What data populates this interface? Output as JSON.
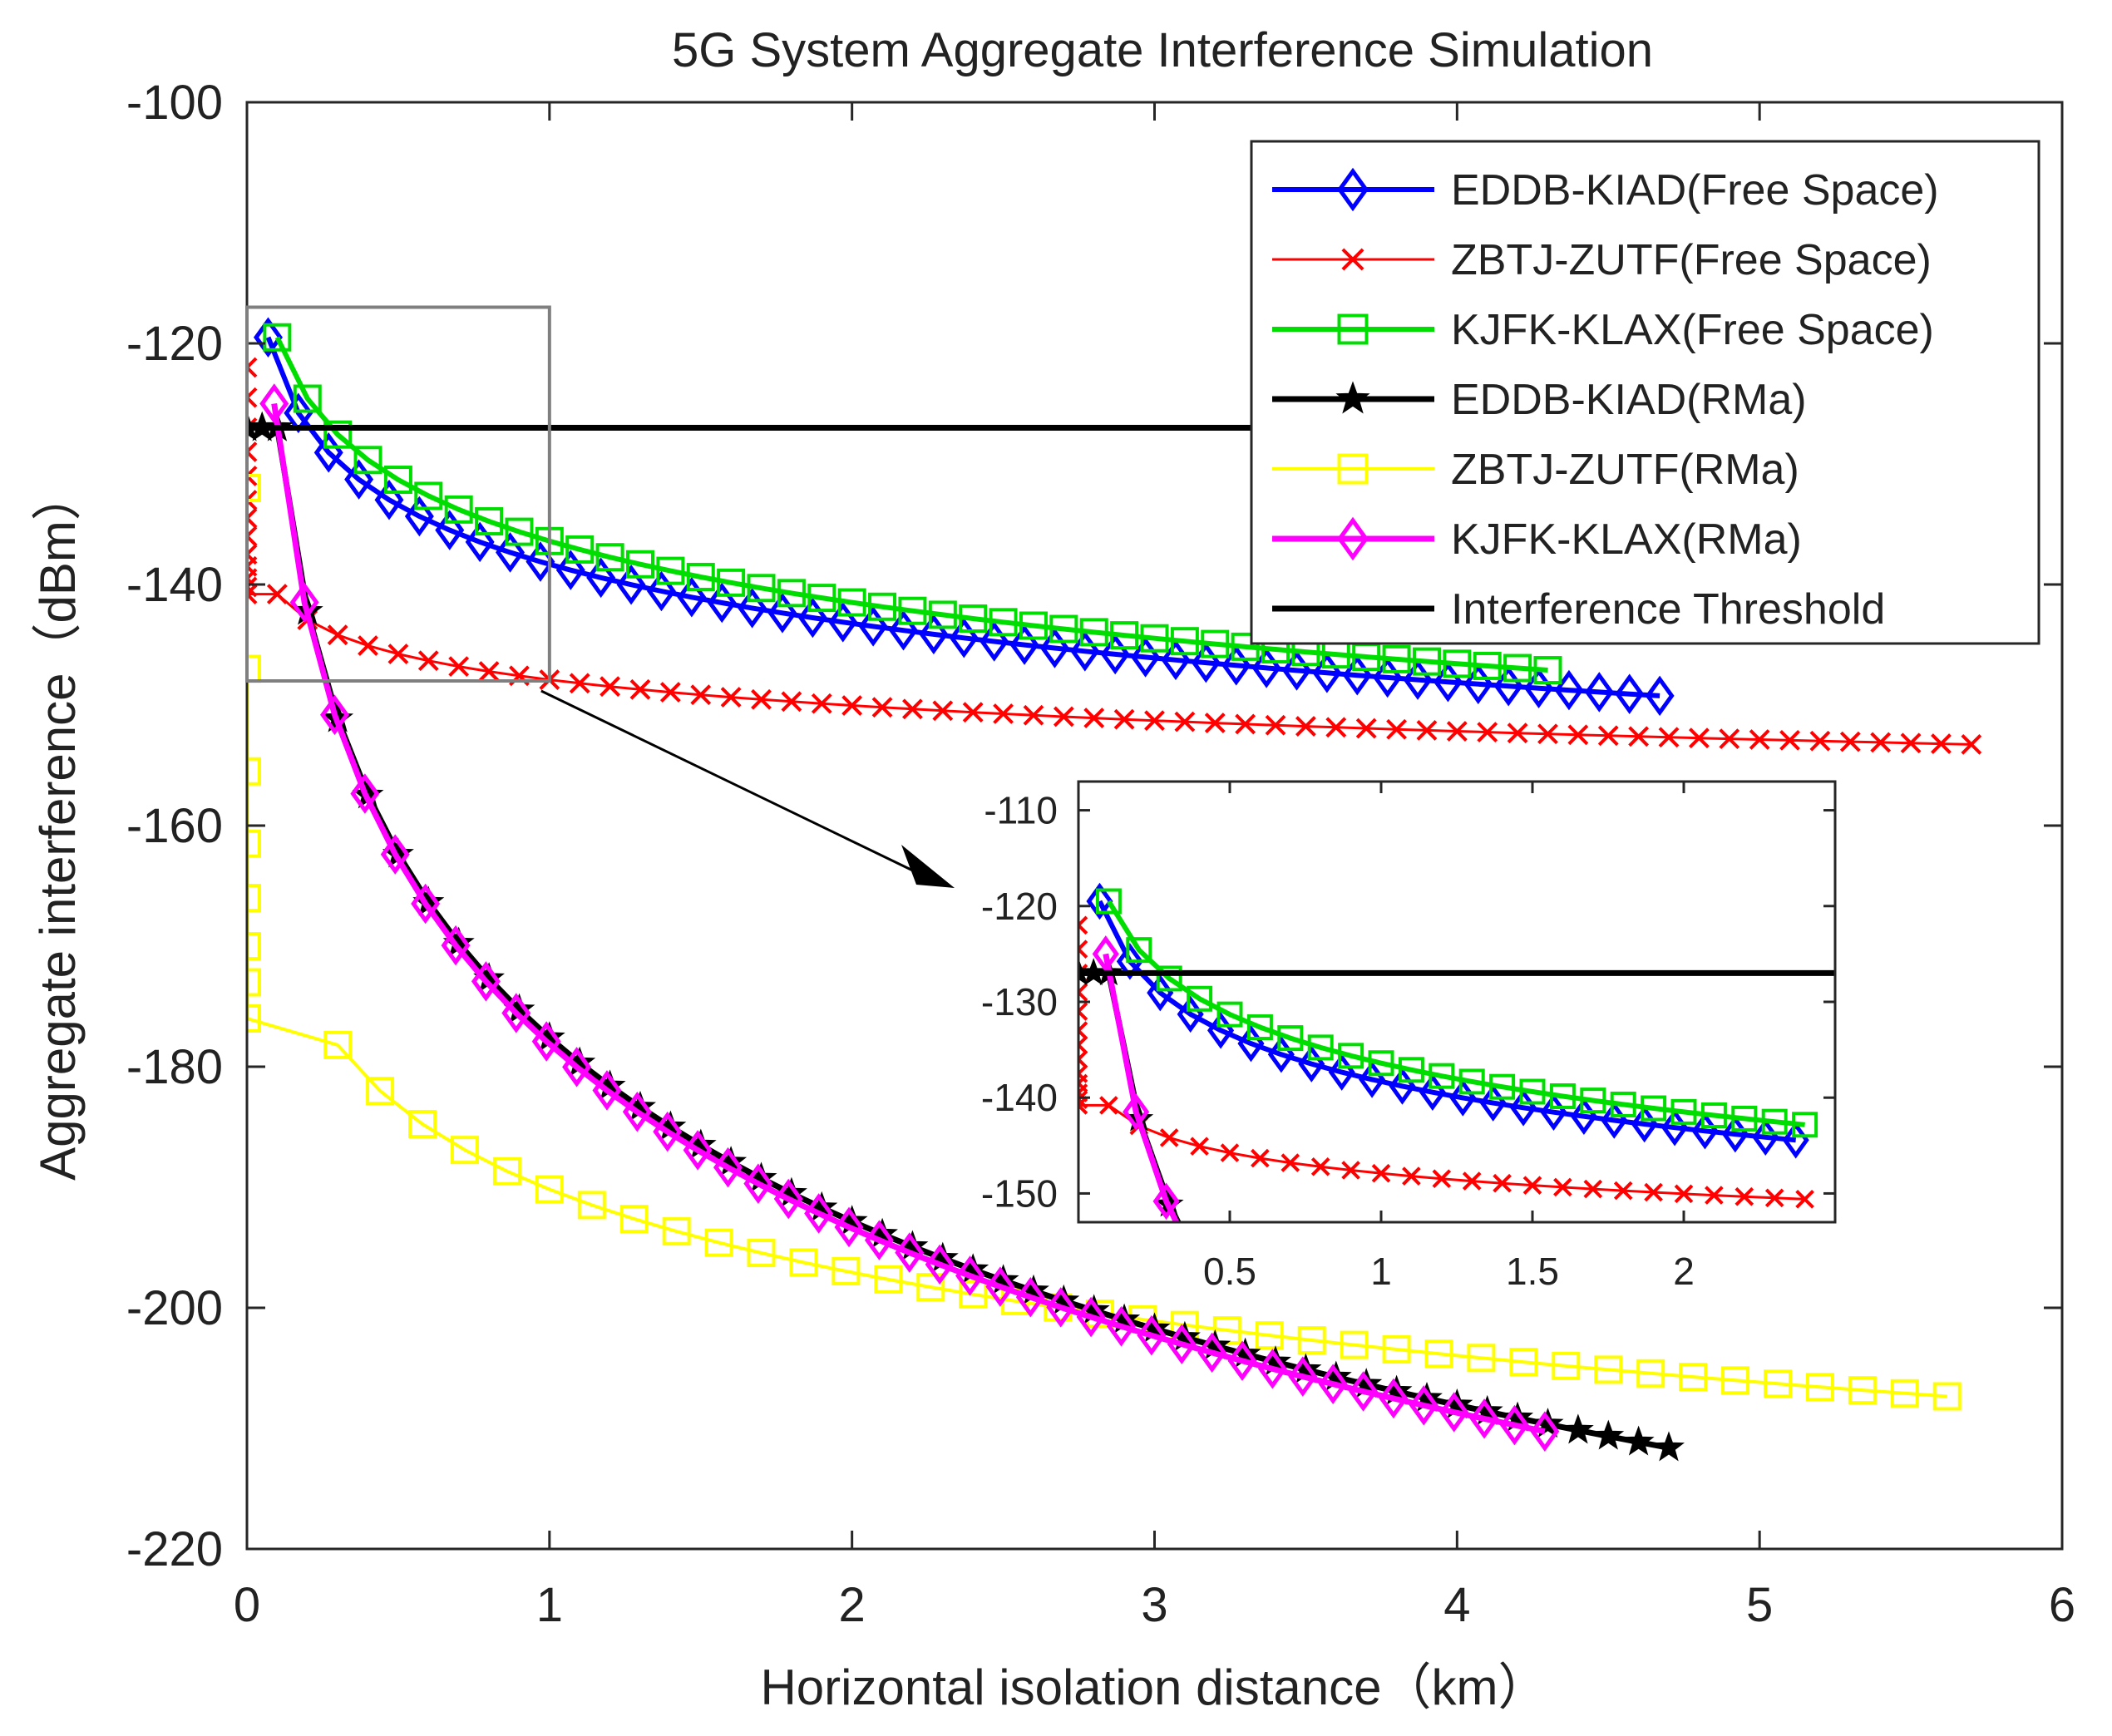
{
  "chart_data": {
    "type": "line",
    "title": "5G System Aggregate Interference Simulation",
    "xlabel": "Horizontal isolation distance（km）",
    "ylabel": "Aggregate interference（dBm）",
    "xlim": [
      0,
      6
    ],
    "ylim": [
      -220,
      -100
    ],
    "xticks": [
      "0",
      "1",
      "2",
      "3",
      "4",
      "5",
      "6"
    ],
    "yticks": [
      "-100",
      "-120",
      "-140",
      "-160",
      "-180",
      "-200",
      "-220"
    ],
    "legend_position": "top-right",
    "colors": {
      "eddb_free": "#0000ff",
      "zbtj_free": "#ff0000",
      "kjfk_free": "#00dd00",
      "eddb_rma": "#000000",
      "zbtj_rma": "#ffff00",
      "kjfk_rma": "#ff00ff",
      "threshold": "#000000",
      "zoom_box": "#7f7f7f"
    },
    "series": [
      {
        "id": "eddb_free",
        "name": "EDDB-KIAD(Free Space)",
        "marker": "diamond",
        "line_width": 6,
        "x_start": 0.07,
        "x_end": 4.7,
        "step": 0.1,
        "y_ref": -119.5,
        "slope": 16.3
      },
      {
        "id": "zbtj_free",
        "name": "ZBTJ-ZUTF(Free Space)",
        "marker": "x",
        "line_width": 3,
        "x_start": 0.1,
        "x_end": 5.75,
        "step": 0.1,
        "y_ref": -140.8,
        "slope": 7.1,
        "near_x": [
          0,
          0,
          0,
          0,
          0,
          0,
          0,
          0,
          0,
          0,
          0,
          0,
          0
        ],
        "near_y": [
          -122,
          -124.5,
          -127,
          -129,
          -131,
          -133,
          -134.5,
          -136,
          -137.5,
          -138.5,
          -139.5,
          -140.2,
          -140.8
        ]
      },
      {
        "id": "kjfk_free",
        "name": "KJFK-KLAX(Free Space)",
        "marker": "square",
        "line_width": 6,
        "x_start": 0.1,
        "x_end": 4.3,
        "step": 0.1,
        "y_ref": -119.5,
        "slope": 16.9
      },
      {
        "id": "eddb_rma",
        "name": "EDDB-KIAD(RMa)",
        "marker": "star",
        "line_width": 7,
        "x_start": 0.1,
        "x_end": 4.75,
        "step": 0.1,
        "y_ref": -127,
        "slope": 50.6,
        "near_x": [
          0.0,
          0.05
        ],
        "near_y": [
          -127,
          -127
        ]
      },
      {
        "id": "zbtj_rma",
        "name": "ZBTJ-ZUTF(RMa)",
        "marker": "square",
        "line_width": 4,
        "x_start": 0.3,
        "x_end": 5.75,
        "step": 0.14,
        "y_ref": -178.2,
        "slope": 22.9,
        "near_x": [
          0,
          0,
          0,
          0,
          0,
          0,
          0,
          0
        ],
        "near_y": [
          -132,
          -147,
          -155.5,
          -161.5,
          -166,
          -170,
          -173,
          -176
        ]
      },
      {
        "id": "kjfk_rma",
        "name": "KJFK-KLAX(RMa)",
        "marker": "diamond",
        "line_width": 7,
        "x_start": 0.09,
        "x_end": 4.3,
        "step": 0.1,
        "y_ref": -125,
        "slope": 50.8
      }
    ],
    "threshold": {
      "name": "Interference Threshold",
      "y": -127,
      "x_start": 0,
      "x_end": 4.1,
      "line_width": 7
    },
    "zoom_box": {
      "x": [
        0,
        1
      ],
      "y": [
        -148,
        -117
      ]
    },
    "inset": {
      "xlim": [
        0,
        2.5
      ],
      "ylim": [
        -153,
        -107
      ],
      "xticks": [
        "0.5",
        "1",
        "1.5",
        "2"
      ],
      "yticks": [
        "-110",
        "-120",
        "-130",
        "-140",
        "-150"
      ]
    }
  }
}
